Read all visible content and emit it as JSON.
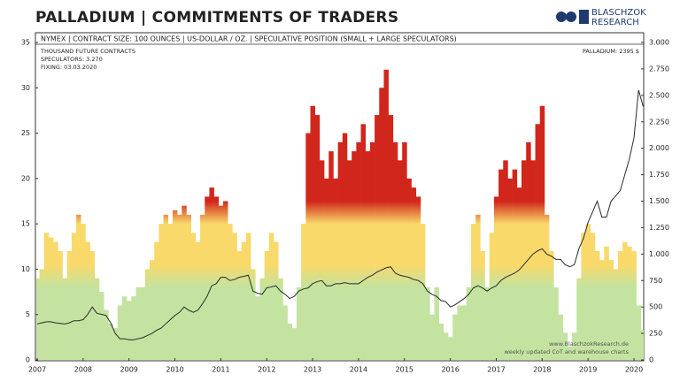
{
  "chart_data": {
    "type": "bar_line",
    "title": "PALLADIUM | COMMITMENTS OF TRADERS",
    "logo": {
      "line1": "BLASCHZOK",
      "line2": "RESEARCH"
    },
    "subtitle": "NYMEX | CONTRACT SIZE: 100 OUNCES | US-DOLLAR / OZ. | SPECULATIVE POSITION (SMALL + LARGE SPECULATORS)",
    "notes": [
      "THOUSAND FUTURE CONTRACTS",
      "SPECULATORS: 3.270",
      "FIXING: 03.03.2020"
    ],
    "price_label": "PALLADIUM: 2395 $",
    "footer": [
      "www.BlaschzokResearch.de",
      "weekly updated CoT and warehouse charts"
    ],
    "x": [
      2007.0,
      2007.1,
      2007.2,
      2007.3,
      2007.4,
      2007.5,
      2007.6,
      2007.7,
      2007.8,
      2007.9,
      2008.0,
      2008.1,
      2008.2,
      2008.3,
      2008.4,
      2008.5,
      2008.6,
      2008.7,
      2008.8,
      2008.9,
      2009.0,
      2009.1,
      2009.2,
      2009.3,
      2009.4,
      2009.5,
      2009.6,
      2009.7,
      2009.8,
      2009.9,
      2010.0,
      2010.1,
      2010.2,
      2010.3,
      2010.4,
      2010.5,
      2010.6,
      2010.7,
      2010.8,
      2010.9,
      2011.0,
      2011.1,
      2011.2,
      2011.3,
      2011.4,
      2011.5,
      2011.6,
      2011.7,
      2011.8,
      2011.9,
      2012.0,
      2012.1,
      2012.2,
      2012.3,
      2012.4,
      2012.5,
      2012.6,
      2012.7,
      2012.8,
      2012.9,
      2013.0,
      2013.1,
      2013.2,
      2013.3,
      2013.4,
      2013.5,
      2013.6,
      2013.7,
      2013.8,
      2013.9,
      2014.0,
      2014.1,
      2014.2,
      2014.3,
      2014.4,
      2014.5,
      2014.6,
      2014.7,
      2014.8,
      2014.9,
      2015.0,
      2015.1,
      2015.2,
      2015.3,
      2015.4,
      2015.5,
      2015.6,
      2015.7,
      2015.8,
      2015.9,
      2016.0,
      2016.1,
      2016.2,
      2016.3,
      2016.4,
      2016.5,
      2016.6,
      2016.7,
      2016.8,
      2016.9,
      2017.0,
      2017.1,
      2017.2,
      2017.3,
      2017.4,
      2017.5,
      2017.6,
      2017.7,
      2017.8,
      2017.9,
      2018.0,
      2018.1,
      2018.2,
      2018.3,
      2018.4,
      2018.5,
      2018.6,
      2018.7,
      2018.8,
      2018.9,
      2019.0,
      2019.1,
      2019.2,
      2019.3,
      2019.4,
      2019.5,
      2019.6,
      2019.7,
      2019.8,
      2019.9,
      2020.0,
      2020.1,
      2020.2
    ],
    "series": [
      {
        "name": "Speculative position",
        "type": "bar",
        "color_stops": [
          {
            "value": 8,
            "color": "#c4e3a0"
          },
          {
            "value": 10.5,
            "color": "#f8d96a"
          },
          {
            "value": 15,
            "color": "#f8d96a"
          },
          {
            "value": 17.5,
            "color": "#d1261b"
          }
        ],
        "values": [
          9,
          10,
          14,
          13.5,
          13,
          12,
          9,
          12,
          14,
          16,
          15,
          13,
          12,
          9,
          7.5,
          5.5,
          4,
          3.5,
          6,
          7,
          6.5,
          7,
          8,
          8,
          10,
          11,
          13,
          15,
          16,
          15,
          16.5,
          16,
          17,
          16,
          14,
          13,
          16,
          18,
          19,
          18,
          17,
          17.5,
          15,
          14,
          12,
          13,
          14,
          10,
          7,
          9,
          12,
          14,
          13,
          9,
          6,
          4,
          3.5,
          8,
          15,
          25,
          28,
          27,
          22,
          20,
          23,
          20,
          24,
          25,
          22,
          23,
          24,
          26,
          23,
          24,
          27,
          30,
          32,
          27,
          24,
          22,
          24,
          20,
          19,
          18,
          15,
          8,
          5,
          8,
          4,
          3,
          2.5,
          5,
          6,
          6,
          8,
          15,
          16,
          12,
          8,
          14,
          18,
          21,
          22,
          20,
          21,
          19,
          22,
          24,
          22,
          26,
          28,
          16,
          12,
          8,
          5,
          3,
          1.5,
          3,
          9,
          14,
          15,
          14,
          12,
          11,
          12.5,
          11,
          10,
          12,
          13,
          12.5,
          12,
          6,
          3.3
        ]
      },
      {
        "name": "Palladium price",
        "type": "line",
        "axis": "y2",
        "color": "#2a2a2a",
        "values": [
          340,
          350,
          360,
          360,
          350,
          345,
          340,
          350,
          370,
          370,
          380,
          430,
          500,
          440,
          430,
          420,
          350,
          250,
          200,
          200,
          190,
          190,
          200,
          210,
          230,
          250,
          280,
          300,
          340,
          380,
          420,
          450,
          500,
          470,
          450,
          470,
          530,
          600,
          700,
          720,
          780,
          780,
          750,
          760,
          780,
          790,
          800,
          650,
          630,
          620,
          680,
          690,
          700,
          650,
          620,
          580,
          600,
          650,
          670,
          680,
          720,
          740,
          750,
          700,
          700,
          720,
          720,
          730,
          720,
          720,
          720,
          750,
          780,
          800,
          830,
          850,
          870,
          880,
          820,
          800,
          790,
          780,
          760,
          750,
          720,
          650,
          620,
          600,
          560,
          550,
          500,
          520,
          550,
          580,
          620,
          680,
          700,
          680,
          650,
          680,
          700,
          750,
          780,
          800,
          820,
          850,
          900,
          950,
          1000,
          1030,
          1050,
          1000,
          980,
          950,
          950,
          900,
          880,
          900,
          1050,
          1150,
          1300,
          1400,
          1500,
          1350,
          1350,
          1500,
          1550,
          1600,
          1750,
          1900,
          2100,
          2550,
          2395
        ]
      }
    ],
    "xlim": [
      2007,
      2020.2
    ],
    "xticks": [
      2007,
      2008,
      2009,
      2010,
      2011,
      2012,
      2013,
      2014,
      2015,
      2016,
      2017,
      2018,
      2019,
      2020
    ],
    "ylim": [
      0,
      35
    ],
    "yticks": [
      0,
      5,
      10,
      15,
      20,
      25,
      30,
      35
    ],
    "y2lim": [
      0,
      3000
    ],
    "y2ticks": [
      0,
      250,
      500,
      750,
      {
        "value": 1000,
        "label": "1.000"
      },
      {
        "value": 1250,
        "label": "1.250"
      },
      {
        "value": 1500,
        "label": "1.500"
      },
      {
        "value": 1750,
        "label": "1.750"
      },
      {
        "value": 2000,
        "label": "2.000"
      },
      {
        "value": 2250,
        "label": "2.250"
      },
      {
        "value": 2500,
        "label": "2.500"
      },
      {
        "value": 2750,
        "label": "2.750"
      },
      {
        "value": 3000,
        "label": "3.000"
      }
    ],
    "grid": false
  }
}
